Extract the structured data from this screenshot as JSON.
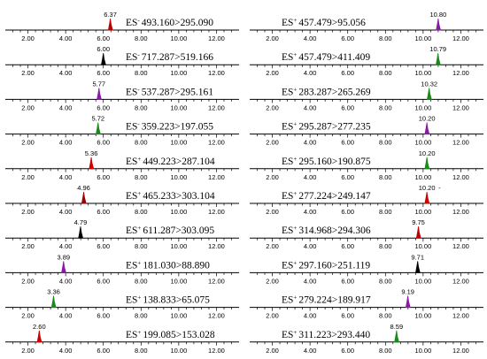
{
  "chart_data": {
    "type": "multi-panel chromatogram",
    "x_ticks": [
      "2.00",
      "4.00",
      "6.00",
      "8.00",
      "10.00",
      "12.00"
    ],
    "xlim": [
      0.8,
      13.2
    ],
    "columns": [
      {
        "traces": [
          {
            "rt": 6.37,
            "rt_label": "6.37",
            "mode": "-",
            "transition": "493.160>295.090",
            "color": "#c00000"
          },
          {
            "rt": 6.0,
            "rt_label": "6.00",
            "mode": "-",
            "transition": "717.287>519.166",
            "color": "#000000"
          },
          {
            "rt": 5.77,
            "rt_label": "5.77",
            "mode": "-",
            "transition": "537.287>295.161",
            "color": "#8a1aa5"
          },
          {
            "rt": 5.72,
            "rt_label": "5.72",
            "mode": "-",
            "transition": "359.223>197.055",
            "color": "#1a8a1a"
          },
          {
            "rt": 5.36,
            "rt_label": "5.36",
            "mode": "+",
            "transition": "449.223>287.104",
            "color": "#d00000"
          },
          {
            "rt": 4.96,
            "rt_label": "4.96",
            "mode": "+",
            "transition": "465.233>303.104",
            "color": "#a00000"
          },
          {
            "rt": 4.79,
            "rt_label": "4.79",
            "mode": "+",
            "transition": "611.287>303.095",
            "color": "#000000"
          },
          {
            "rt": 3.89,
            "rt_label": "3.89",
            "mode": "+",
            "transition": "181.030>88.890",
            "color": "#8a1aa5"
          },
          {
            "rt": 3.36,
            "rt_label": "3.36",
            "mode": "+",
            "transition": "138.833>65.075",
            "color": "#1a8a1a"
          },
          {
            "rt": 2.6,
            "rt_label": "2.60",
            "mode": "+",
            "transition": "199.085>153.028",
            "color": "#d00000"
          }
        ]
      },
      {
        "traces": [
          {
            "rt": 10.8,
            "rt_label": "10.80",
            "mode": "+",
            "transition": "457.479>95.056",
            "color": "#8a1aa5"
          },
          {
            "rt": 10.79,
            "rt_label": "10.79",
            "mode": "+",
            "transition": "457.479>411.409",
            "color": "#1a8a1a"
          },
          {
            "rt": 10.32,
            "rt_label": "10.32",
            "mode": "+",
            "transition": "283.287>265.269",
            "color": "#1a8a1a"
          },
          {
            "rt": 10.2,
            "rt_label": "10.20",
            "mode": "+",
            "transition": "295.287>277.235",
            "color": "#8a1aa5"
          },
          {
            "rt": 10.2,
            "rt_label": "10.20",
            "mode": "+",
            "transition": "295.160>190.875",
            "color": "#1a8a1a"
          },
          {
            "rt": 10.2,
            "rt_label": "10.20",
            "mode": "+",
            "transition": "277.224>249.147",
            "color": "#d00000"
          },
          {
            "rt": 9.75,
            "rt_label": "9.75",
            "mode": "+",
            "transition": "314.968>294.306",
            "color": "#c00000"
          },
          {
            "rt": 9.71,
            "rt_label": "9.71",
            "mode": "+",
            "transition": "297.160>251.119",
            "color": "#000000"
          },
          {
            "rt": 9.19,
            "rt_label": "9.19",
            "mode": "+",
            "transition": "279.224>189.917",
            "color": "#8a1aa5"
          },
          {
            "rt": 8.59,
            "rt_label": "8.59",
            "mode": "+",
            "transition": "311.223>293.440",
            "color": "#1a8a1a"
          }
        ]
      }
    ],
    "stray_mark": "-"
  }
}
